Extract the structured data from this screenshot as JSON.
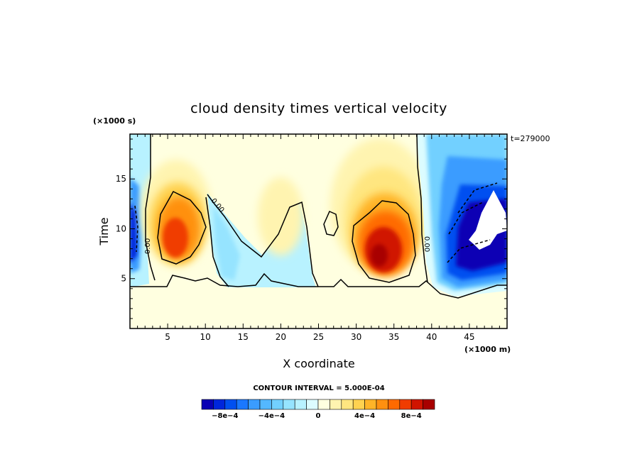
{
  "chart_data": {
    "type": "heatmap",
    "title": "cloud density times vertical velocity",
    "xlabel": "X coordinate",
    "ylabel": "Time",
    "x_unit": "(×1000 m)",
    "y_unit": "(×1000 s)",
    "time_stamp": "t=279000",
    "xlim": [
      0,
      50
    ],
    "ylim": [
      0,
      19.5
    ],
    "x_ticks": [
      5,
      10,
      15,
      20,
      25,
      30,
      35,
      40,
      45
    ],
    "y_ticks": [
      5,
      10,
      15
    ],
    "contour_interval_label": "CONTOUR INTERVAL = 5.000E-04",
    "contour_line_labels": [
      "0.00",
      "0.00",
      "0.00"
    ],
    "colorbar": {
      "levels": [
        -0.001,
        -0.0009,
        -0.0008,
        -0.0007,
        -0.0006,
        -0.0005,
        -0.0004,
        -0.0003,
        -0.0002,
        -0.0001,
        0,
        0.0001,
        0.0002,
        0.0003,
        0.0004,
        0.0005,
        0.0006,
        0.0007,
        0.0008,
        0.0009,
        0.001
      ],
      "colors": [
        "#0a00b4",
        "#0026dc",
        "#0050f0",
        "#1a78ff",
        "#3a9cff",
        "#54b8ff",
        "#72d0ff",
        "#96e4ff",
        "#b8f2ff",
        "#dcfcff",
        "#ffffe0",
        "#fff4b0",
        "#ffe680",
        "#ffd250",
        "#ffb428",
        "#ff9010",
        "#ff6a00",
        "#f03c00",
        "#d01400",
        "#a80000"
      ],
      "tick_values": [
        -0.0008,
        -0.0004,
        0,
        0.0004,
        0.0008
      ],
      "tick_labels": [
        "−8e−4",
        "−4e−4",
        "0",
        "4e−4",
        "8e−4"
      ]
    },
    "regions": [
      {
        "feature": "left-edge downdraft",
        "x": [
          0,
          2.5
        ],
        "y": [
          4.5,
          18
        ],
        "peak": -0.0007
      },
      {
        "feature": "updraft core A",
        "x": [
          3,
          10
        ],
        "y": [
          6.5,
          14
        ],
        "peak": 0.0009
      },
      {
        "feature": "downdraft tongue",
        "x": [
          10,
          23
        ],
        "y": [
          4.5,
          13
        ],
        "peak": -0.0002
      },
      {
        "feature": "weak updraft",
        "x": [
          17,
          28
        ],
        "y": [
          5,
          13
        ],
        "peak": 0.0001
      },
      {
        "feature": "updraft core B",
        "x": [
          29,
          38.5
        ],
        "y": [
          4.5,
          16
        ],
        "peak": 0.001
      },
      {
        "feature": "right downdraft",
        "x": [
          38.5,
          50
        ],
        "y": [
          3.5,
          19.5
        ],
        "peak": -0.001
      }
    ]
  }
}
